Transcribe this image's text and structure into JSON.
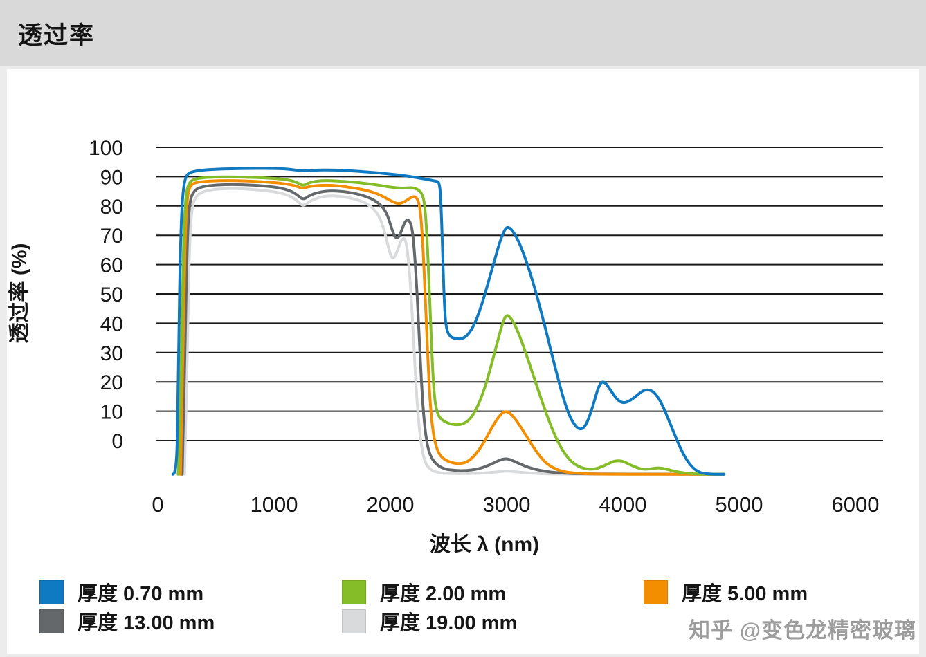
{
  "header": {
    "title": "透过率"
  },
  "watermark": {
    "text": "知乎 @变色龙精密玻璃"
  },
  "colors": {
    "grid": "#1a1a1a",
    "text": "#161616",
    "header_bg": "#d9d9d9",
    "panel_bg": "#ffffff",
    "watermark": "#9d9d9d"
  },
  "chart_data": {
    "type": "line",
    "title": "透过率",
    "xlabel": "波长 λ (nm)",
    "ylabel": "透过率 (%)",
    "xlim": [
      0,
      6000
    ],
    "ylim": [
      -14,
      100
    ],
    "x_ticks": [
      0,
      1000,
      2000,
      3000,
      4000,
      5000,
      6000
    ],
    "y_ticks": [
      0,
      10,
      20,
      30,
      40,
      50,
      60,
      70,
      80,
      90,
      100
    ],
    "grid": "horizontal",
    "legend_position": "bottom",
    "series": [
      {
        "name": "厚度 0.70 mm",
        "color": "#0f79c2",
        "points": [
          [
            130,
            -11.5
          ],
          [
            160,
            -11.5
          ],
          [
            172,
            10
          ],
          [
            182,
            40
          ],
          [
            192,
            62
          ],
          [
            205,
            78
          ],
          [
            222,
            87
          ],
          [
            248,
            90.8
          ],
          [
            300,
            91.8
          ],
          [
            420,
            92.4
          ],
          [
            700,
            92.8
          ],
          [
            1000,
            92.8
          ],
          [
            1120,
            92.6
          ],
          [
            1200,
            92.2
          ],
          [
            1260,
            91.9
          ],
          [
            1340,
            92.2
          ],
          [
            1500,
            92.3
          ],
          [
            1700,
            91.9
          ],
          [
            1900,
            91.3
          ],
          [
            2050,
            90.7
          ],
          [
            2180,
            90
          ],
          [
            2280,
            89.3
          ],
          [
            2350,
            88.8
          ],
          [
            2400,
            88.4
          ],
          [
            2420,
            88
          ],
          [
            2432,
            84
          ],
          [
            2444,
            72
          ],
          [
            2456,
            56
          ],
          [
            2468,
            44
          ],
          [
            2482,
            38
          ],
          [
            2510,
            35.5
          ],
          [
            2560,
            34.7
          ],
          [
            2620,
            34.6
          ],
          [
            2680,
            36.5
          ],
          [
            2740,
            41
          ],
          [
            2800,
            48
          ],
          [
            2850,
            55
          ],
          [
            2900,
            62
          ],
          [
            2940,
            67.5
          ],
          [
            2970,
            70.8
          ],
          [
            3000,
            72.8
          ],
          [
            3030,
            72.5
          ],
          [
            3070,
            70.5
          ],
          [
            3120,
            66.5
          ],
          [
            3180,
            60
          ],
          [
            3250,
            51
          ],
          [
            3330,
            39
          ],
          [
            3410,
            26
          ],
          [
            3490,
            14
          ],
          [
            3550,
            7.5
          ],
          [
            3600,
            4.5
          ],
          [
            3640,
            3.7
          ],
          [
            3680,
            5
          ],
          [
            3720,
            9
          ],
          [
            3755,
            13.5
          ],
          [
            3790,
            18.3
          ],
          [
            3820,
            20.2
          ],
          [
            3855,
            19.5
          ],
          [
            3900,
            16.8
          ],
          [
            3950,
            14
          ],
          [
            3995,
            12.8
          ],
          [
            4045,
            13.2
          ],
          [
            4105,
            14.8
          ],
          [
            4165,
            16.9
          ],
          [
            4215,
            17.4
          ],
          [
            4265,
            16.7
          ],
          [
            4320,
            13.8
          ],
          [
            4380,
            8.5
          ],
          [
            4445,
            2
          ],
          [
            4510,
            -4
          ],
          [
            4580,
            -8.5
          ],
          [
            4650,
            -10.8
          ],
          [
            4720,
            -11.4
          ],
          [
            4800,
            -11.5
          ],
          [
            4870,
            -11.5
          ]
        ]
      },
      {
        "name": "厚度 2.00 mm",
        "color": "#84bd27",
        "points": [
          [
            175,
            -11.5
          ],
          [
            200,
            20
          ],
          [
            212,
            50
          ],
          [
            225,
            72
          ],
          [
            240,
            83
          ],
          [
            265,
            88
          ],
          [
            330,
            89.5
          ],
          [
            550,
            90
          ],
          [
            900,
            89.7
          ],
          [
            1120,
            89
          ],
          [
            1200,
            88
          ],
          [
            1250,
            86.8
          ],
          [
            1300,
            88
          ],
          [
            1420,
            88.8
          ],
          [
            1650,
            88.3
          ],
          [
            1850,
            87.4
          ],
          [
            2000,
            86.4
          ],
          [
            2100,
            86
          ],
          [
            2180,
            86.3
          ],
          [
            2230,
            85.8
          ],
          [
            2270,
            84.5
          ],
          [
            2295,
            81
          ],
          [
            2315,
            70
          ],
          [
            2335,
            52
          ],
          [
            2355,
            32
          ],
          [
            2375,
            16
          ],
          [
            2400,
            9.5
          ],
          [
            2440,
            7
          ],
          [
            2520,
            5.5
          ],
          [
            2600,
            5.3
          ],
          [
            2670,
            6.5
          ],
          [
            2740,
            10.5
          ],
          [
            2810,
            17.5
          ],
          [
            2870,
            26
          ],
          [
            2920,
            33.5
          ],
          [
            2960,
            39.5
          ],
          [
            2995,
            43
          ],
          [
            3035,
            42
          ],
          [
            3090,
            38
          ],
          [
            3160,
            30.5
          ],
          [
            3240,
            21
          ],
          [
            3320,
            11.5
          ],
          [
            3400,
            3
          ],
          [
            3480,
            -3.5
          ],
          [
            3560,
            -7.5
          ],
          [
            3650,
            -9.5
          ],
          [
            3750,
            -9.9
          ],
          [
            3840,
            -8.6
          ],
          [
            3910,
            -7.2
          ],
          [
            3960,
            -6.8
          ],
          [
            4010,
            -7.2
          ],
          [
            4080,
            -8.6
          ],
          [
            4160,
            -9.8
          ],
          [
            4240,
            -9.7
          ],
          [
            4310,
            -9.2
          ],
          [
            4390,
            -9.9
          ],
          [
            4480,
            -10.8
          ],
          [
            4580,
            -11.3
          ],
          [
            4700,
            -11.5
          ],
          [
            4870,
            -11.5
          ]
        ]
      },
      {
        "name": "厚度 5.00 mm",
        "color": "#f28e00",
        "points": [
          [
            195,
            -11.5
          ],
          [
            215,
            25
          ],
          [
            228,
            55
          ],
          [
            240,
            74
          ],
          [
            255,
            83
          ],
          [
            275,
            87
          ],
          [
            340,
            88.3
          ],
          [
            600,
            88.8
          ],
          [
            950,
            88.2
          ],
          [
            1130,
            87.4
          ],
          [
            1200,
            86.6
          ],
          [
            1250,
            85.9
          ],
          [
            1310,
            86.8
          ],
          [
            1480,
            87.2
          ],
          [
            1650,
            86.4
          ],
          [
            1800,
            85.3
          ],
          [
            1900,
            84
          ],
          [
            1970,
            82.5
          ],
          [
            2030,
            81.2
          ],
          [
            2080,
            80.7
          ],
          [
            2130,
            81.6
          ],
          [
            2180,
            83
          ],
          [
            2215,
            83.3
          ],
          [
            2245,
            81.5
          ],
          [
            2265,
            76
          ],
          [
            2285,
            63
          ],
          [
            2305,
            45
          ],
          [
            2325,
            26
          ],
          [
            2345,
            11
          ],
          [
            2370,
            2
          ],
          [
            2400,
            -3
          ],
          [
            2440,
            -5.8
          ],
          [
            2510,
            -7.4
          ],
          [
            2590,
            -8
          ],
          [
            2660,
            -7.4
          ],
          [
            2730,
            -5
          ],
          [
            2800,
            -1
          ],
          [
            2860,
            3.5
          ],
          [
            2920,
            7.5
          ],
          [
            2965,
            9.6
          ],
          [
            3000,
            10
          ],
          [
            3040,
            9
          ],
          [
            3100,
            6
          ],
          [
            3170,
            1.5
          ],
          [
            3250,
            -3.5
          ],
          [
            3330,
            -7.5
          ],
          [
            3420,
            -9.8
          ],
          [
            3520,
            -10.9
          ],
          [
            3650,
            -11.3
          ],
          [
            3850,
            -11.5
          ],
          [
            4870,
            -11.5
          ]
        ]
      },
      {
        "name": "厚度 13.00 mm",
        "color": "#64686b",
        "points": [
          [
            210,
            -11.5
          ],
          [
            232,
            25
          ],
          [
            245,
            55
          ],
          [
            258,
            72
          ],
          [
            272,
            80
          ],
          [
            295,
            84.5
          ],
          [
            370,
            86.8
          ],
          [
            650,
            87.5
          ],
          [
            1000,
            86.6
          ],
          [
            1130,
            85.4
          ],
          [
            1200,
            83.8
          ],
          [
            1250,
            82
          ],
          [
            1320,
            84
          ],
          [
            1450,
            85.2
          ],
          [
            1600,
            85
          ],
          [
            1750,
            83.8
          ],
          [
            1850,
            82.3
          ],
          [
            1920,
            80.3
          ],
          [
            1970,
            77.5
          ],
          [
            2010,
            72.5
          ],
          [
            2040,
            69.2
          ],
          [
            2070,
            69
          ],
          [
            2100,
            72
          ],
          [
            2130,
            75
          ],
          [
            2160,
            75.3
          ],
          [
            2185,
            73
          ],
          [
            2205,
            66
          ],
          [
            2225,
            54
          ],
          [
            2245,
            38
          ],
          [
            2265,
            22
          ],
          [
            2285,
            9
          ],
          [
            2310,
            0
          ],
          [
            2340,
            -5
          ],
          [
            2390,
            -8
          ],
          [
            2460,
            -9.7
          ],
          [
            2550,
            -10.2
          ],
          [
            2650,
            -10.3
          ],
          [
            2760,
            -9.7
          ],
          [
            2850,
            -8.4
          ],
          [
            2920,
            -7
          ],
          [
            2975,
            -6.2
          ],
          [
            3020,
            -6.3
          ],
          [
            3080,
            -7.3
          ],
          [
            3160,
            -8.8
          ],
          [
            3260,
            -10
          ],
          [
            3380,
            -10.8
          ],
          [
            3520,
            -11.2
          ],
          [
            3700,
            -11.4
          ],
          [
            4870,
            -11.5
          ]
        ]
      },
      {
        "name": "厚度 19.00 mm",
        "color": "#d8dadb",
        "points": [
          [
            230,
            -11.5
          ],
          [
            250,
            20
          ],
          [
            262,
            48
          ],
          [
            274,
            67
          ],
          [
            288,
            77
          ],
          [
            310,
            82.5
          ],
          [
            390,
            85.3
          ],
          [
            650,
            86.2
          ],
          [
            1000,
            85
          ],
          [
            1130,
            83.6
          ],
          [
            1200,
            81.8
          ],
          [
            1250,
            79.8
          ],
          [
            1320,
            82
          ],
          [
            1450,
            83.6
          ],
          [
            1600,
            83.2
          ],
          [
            1750,
            81.8
          ],
          [
            1830,
            80
          ],
          [
            1890,
            77.5
          ],
          [
            1930,
            74
          ],
          [
            1965,
            69
          ],
          [
            1995,
            64
          ],
          [
            2020,
            61.8
          ],
          [
            2050,
            63.5
          ],
          [
            2080,
            67
          ],
          [
            2110,
            69.3
          ],
          [
            2135,
            68
          ],
          [
            2155,
            62
          ],
          [
            2175,
            52
          ],
          [
            2195,
            38
          ],
          [
            2215,
            23
          ],
          [
            2235,
            10
          ],
          [
            2260,
            0
          ],
          [
            2290,
            -6.5
          ],
          [
            2330,
            -9.5
          ],
          [
            2390,
            -10.8
          ],
          [
            2470,
            -11.2
          ],
          [
            2600,
            -11.3
          ],
          [
            2750,
            -11.2
          ],
          [
            2870,
            -10.9
          ],
          [
            2960,
            -10.5
          ],
          [
            3020,
            -10.4
          ],
          [
            3090,
            -10.7
          ],
          [
            3200,
            -11.1
          ],
          [
            3350,
            -11.4
          ],
          [
            3550,
            -11.5
          ],
          [
            4870,
            -11.5
          ]
        ]
      }
    ]
  }
}
